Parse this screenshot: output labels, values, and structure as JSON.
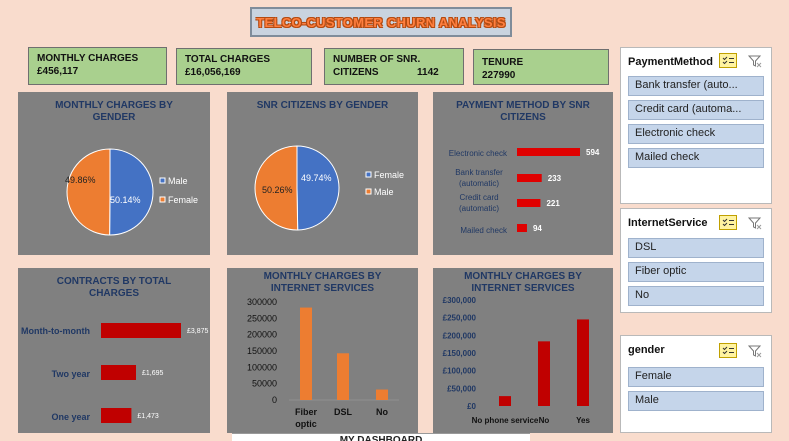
{
  "title": "TELCO-CUSTOMER CHURN ANALYSIS",
  "kpis": [
    {
      "label": "MONTHLY CHARGES",
      "value": "£456,117"
    },
    {
      "label": "TOTAL CHARGES",
      "value": "£16,056,169"
    },
    {
      "label": "NUMBER OF SNR. CITIZENS",
      "value": "1142"
    },
    {
      "label": "TENURE",
      "value": "227990"
    }
  ],
  "slicers": {
    "payment": {
      "title": "PaymentMethod",
      "items": [
        "Bank transfer (auto...",
        "Credit card (automa...",
        "Electronic check",
        "Mailed check"
      ]
    },
    "internet": {
      "title": "InternetService",
      "items": [
        "DSL",
        "Fiber optic",
        "No"
      ]
    },
    "gender": {
      "title": "gender",
      "items": [
        "Female",
        "Male"
      ]
    }
  },
  "colors": {
    "blue": "#4472c4",
    "orange": "#ed7d31",
    "red": "#e00000",
    "dark_red": "#c00000",
    "panel": "#808080",
    "kpi": "#a9d08e",
    "title_blue": "#203864"
  },
  "icons": {
    "multiselect": "multi-select-icon",
    "clear_filter": "clear-filter-icon"
  },
  "bottom_tab": "MY DASHBOARD",
  "chart_data": [
    {
      "type": "pie",
      "title": "MONTHLY CHARGES BY GENDER",
      "labels": [
        "Male",
        "Female"
      ],
      "values": [
        50.14,
        49.86
      ],
      "data_labels": [
        "50.14%",
        "49.86%"
      ],
      "colors": [
        "#4472c4",
        "#ed7d31"
      ],
      "legend": "right"
    },
    {
      "type": "pie",
      "title": "SNR CITIZENS BY GENDER",
      "labels": [
        "Female",
        "Male"
      ],
      "values": [
        49.74,
        50.26
      ],
      "data_labels": [
        "49.74%",
        "50.26%"
      ],
      "colors": [
        "#4472c4",
        "#ed7d31"
      ],
      "legend": "right"
    },
    {
      "type": "bar",
      "orientation": "horizontal",
      "title": "PAYMENT METHOD BY SNR CITIZENS",
      "categories": [
        "Electronic check",
        "Bank transfer (automatic)",
        "Credit card (automatic)",
        "Mailed check"
      ],
      "values": [
        594,
        233,
        221,
        94
      ],
      "data_labels": [
        "594",
        "233",
        "221",
        "94"
      ],
      "color": "#e00000"
    },
    {
      "type": "bar",
      "orientation": "horizontal",
      "title": "CONTRACTS BY TOTAL CHARGES",
      "categories": [
        "Month-to-month",
        "Two year",
        "One year"
      ],
      "values": [
        3875,
        1695,
        1473
      ],
      "data_labels": [
        "£3,875",
        "£1,695",
        "£1,473"
      ],
      "color": "#c00000"
    },
    {
      "type": "bar",
      "title": "MONTHLY CHARGES BY INTERNET SERVICES",
      "categories": [
        "Fiber optic",
        "DSL",
        "No"
      ],
      "values": [
        283000,
        143000,
        32000
      ],
      "ylim": [
        0,
        300000
      ],
      "yticks": [
        "0",
        "50000",
        "100000",
        "150000",
        "200000",
        "250000",
        "300000"
      ],
      "color": "#ed7d31"
    },
    {
      "type": "bar",
      "title": "MONTHLY CHARGES BY INTERNET SERVICES",
      "categories": [
        "No phone service",
        "No",
        "Yes"
      ],
      "values": [
        28000,
        183000,
        245000
      ],
      "ylim": [
        0,
        300000
      ],
      "yticks": [
        "£0",
        "£50,000",
        "£100,000",
        "£150,000",
        "£200,000",
        "£250,000",
        "£300,000"
      ],
      "color": "#c00000"
    }
  ]
}
